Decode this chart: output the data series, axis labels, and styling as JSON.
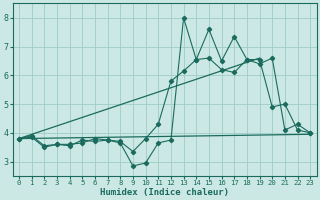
{
  "xlabel": "Humidex (Indice chaleur)",
  "xlim": [
    -0.5,
    23.5
  ],
  "ylim": [
    2.5,
    8.5
  ],
  "yticks": [
    3,
    4,
    5,
    6,
    7,
    8
  ],
  "xticks": [
    0,
    1,
    2,
    3,
    4,
    5,
    6,
    7,
    8,
    9,
    10,
    11,
    12,
    13,
    14,
    15,
    16,
    17,
    18,
    19,
    20,
    21,
    22,
    23
  ],
  "bg_color": "#cce8e4",
  "grid_color": "#9fccc7",
  "line_color": "#1a6b5e",
  "series_jagged1_x": [
    0,
    1,
    2,
    3,
    4,
    5,
    6,
    7,
    8,
    9,
    10,
    11,
    12,
    13,
    14,
    15,
    16,
    17,
    18,
    19,
    20,
    21,
    22,
    23
  ],
  "series_jagged1_y": [
    3.8,
    3.9,
    3.55,
    3.6,
    3.55,
    3.75,
    3.7,
    3.75,
    3.65,
    2.85,
    2.95,
    3.65,
    3.75,
    8.0,
    6.55,
    7.6,
    6.5,
    7.35,
    6.55,
    6.55,
    4.9,
    5.0,
    4.1,
    4.0
  ],
  "series_jagged2_x": [
    0,
    1,
    2,
    3,
    4,
    5,
    6,
    7,
    8,
    9,
    10,
    11,
    12,
    13,
    14,
    15,
    16,
    17,
    18,
    19,
    20,
    21,
    22,
    23
  ],
  "series_jagged2_y": [
    3.8,
    3.85,
    3.5,
    3.6,
    3.6,
    3.65,
    3.8,
    3.75,
    3.7,
    3.35,
    3.8,
    4.3,
    5.8,
    6.15,
    6.55,
    6.6,
    6.2,
    6.1,
    6.55,
    6.4,
    6.6,
    4.1,
    4.3,
    4.0
  ],
  "trend1_x": [
    0,
    23
  ],
  "trend1_y": [
    3.8,
    3.95
  ],
  "trend2_x": [
    0,
    19
  ],
  "trend2_y": [
    3.8,
    6.6
  ]
}
